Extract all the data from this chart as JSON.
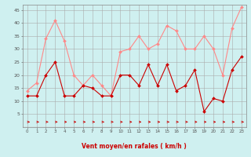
{
  "xlabel": "Vent moyen/en rafales ( km/h )",
  "x": [
    0,
    1,
    2,
    3,
    4,
    5,
    6,
    7,
    8,
    9,
    10,
    11,
    12,
    13,
    14,
    15,
    16,
    17,
    18,
    19,
    20,
    21,
    22,
    23
  ],
  "wind_avg": [
    12,
    12,
    20,
    25,
    12,
    12,
    16,
    15,
    12,
    12,
    20,
    20,
    16,
    24,
    16,
    24,
    14,
    16,
    22,
    6,
    11,
    10,
    22,
    27
  ],
  "wind_gust": [
    14,
    17,
    34,
    41,
    33,
    20,
    16,
    20,
    16,
    12,
    29,
    30,
    35,
    30,
    32,
    39,
    37,
    30,
    30,
    35,
    30,
    20,
    38,
    46
  ],
  "bg_color": "#cff0f0",
  "grid_color": "#aaaaaa",
  "avg_color": "#cc0000",
  "gust_color": "#ff8888",
  "arrow_color": "#cc0000",
  "ylim": [
    0,
    47
  ],
  "yticks": [
    5,
    10,
    15,
    20,
    25,
    30,
    35,
    40,
    45
  ],
  "fig_width": 3.2,
  "fig_height": 2.0,
  "dpi": 100
}
